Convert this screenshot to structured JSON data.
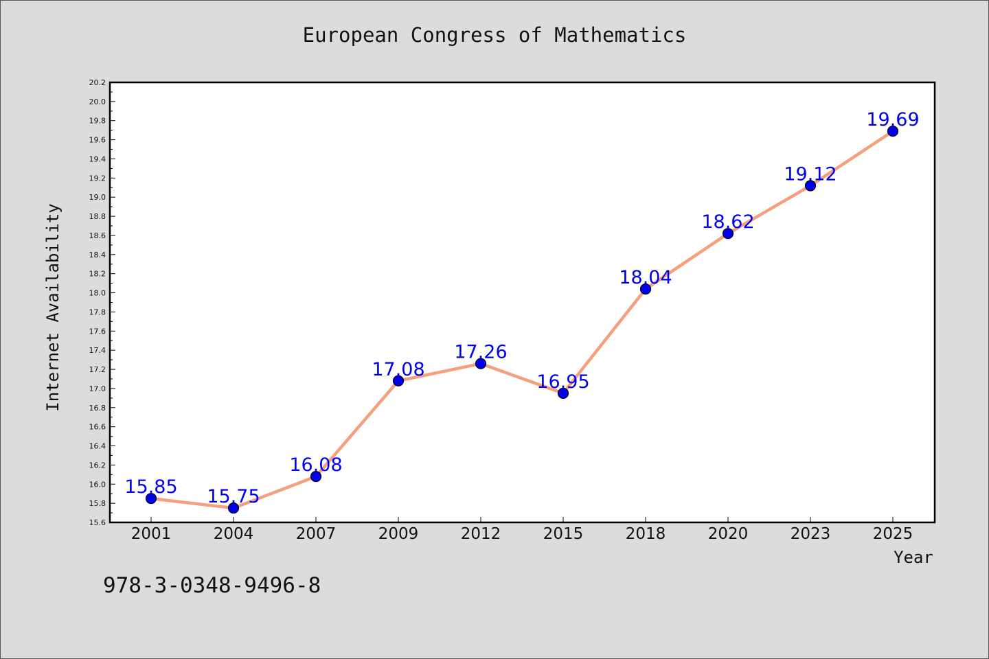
{
  "chart_data": {
    "type": "line",
    "title": "European Congress of Mathematics",
    "xlabel": "Year",
    "ylabel": "Internet Availability",
    "categories": [
      "2001",
      "2004",
      "2007",
      "2009",
      "2012",
      "2015",
      "2018",
      "2020",
      "2023",
      "2025"
    ],
    "series": [
      {
        "values": [
          15.85,
          15.75,
          16.08,
          17.08,
          17.26,
          16.95,
          18.04,
          18.62,
          19.12,
          19.69
        ],
        "labels": [
          "15.85",
          "15.75",
          "16.08",
          "17.08",
          "17.26",
          "16.95",
          "18.04",
          "18.62",
          "19.12",
          "19.69"
        ]
      }
    ],
    "ylim": [
      15.6,
      20.2
    ],
    "yticks": [
      "15.6",
      "15.8",
      "16.0",
      "16.2",
      "16.4",
      "16.6",
      "16.8",
      "17.0",
      "17.2",
      "17.4",
      "17.6",
      "17.8",
      "18.0",
      "18.2",
      "18.4",
      "18.6",
      "18.8",
      "19.0",
      "19.2",
      "19.4",
      "19.6",
      "19.8",
      "20.0",
      "20.2"
    ],
    "grid": false,
    "legend": "none",
    "line_color": "#f4a07e",
    "marker_color": "#0000ee",
    "label_color": "#0000ee"
  },
  "footer": {
    "isbn": "978-3-0348-9496-8"
  }
}
